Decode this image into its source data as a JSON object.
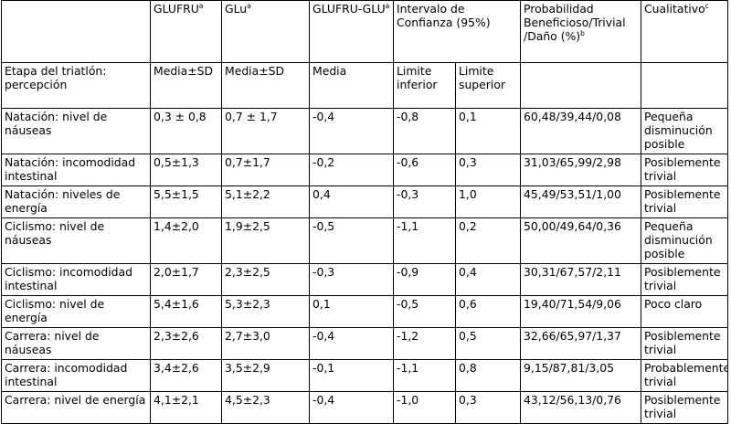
{
  "header_top": {
    "empty": "",
    "glufru": "GLUFRU",
    "glufru_sup": "a",
    "glu": "GLu",
    "glu_sup": "a",
    "glufru_glu": "GLUFRU-GLU",
    "glufru_glu_sup": "a",
    "confidence": "Intervalo de Confianza (95%)",
    "probability": "Probabilidad Beneficioso/Trivial /Daño (%)",
    "probability_sup": "b",
    "qualitative": "Cualitativo",
    "qualitative_sup": "c"
  },
  "header_sub": {
    "stage": "Etapa del triatlón: percepción",
    "glufru": "Media±SD",
    "glu": "Media±SD",
    "diff": "Media",
    "lower": "Limite inferior",
    "upper": "Limite superior",
    "probability": "",
    "qualitative": ""
  },
  "rows": [
    {
      "label": "Natación: nivel de náuseas",
      "glufru": "0,3 ± 0,8",
      "glu": "0,7 ± 1,7",
      "diff": "-0,4",
      "lower": "-0,8",
      "upper": "0,1",
      "prob": "60,48/39,44/0,08",
      "qual": "Pequeña disminución posible"
    },
    {
      "label": "Natación: incomodidad intestinal",
      "glufru": "0,5±1,3",
      "glu": "0,7±1,7",
      "diff": "-0,2",
      "lower": "-0,6",
      "upper": "0,3",
      "prob": "31,03/65,99/2,98",
      "qual": "Posiblemente trivial"
    },
    {
      "label": "Natación: niveles de energía",
      "glufru": "5,5±1,5",
      "glu": "5,1±2,2",
      "diff": "0,4",
      "lower": "-0,3",
      "upper": "1,0",
      "prob": "45,49/53,51/1,00",
      "qual": "Posiblemente trivial"
    },
    {
      "label": "Ciclismo: nivel de náuseas",
      "glufru": "1,4±2,0",
      "glu": "1,9±2,5",
      "diff": "-0,5",
      "lower": "-1,1",
      "upper": "0,2",
      "prob": "50,00/49,64/0,36",
      "qual": "Pequeña disminución posible"
    },
    {
      "label": "Ciclismo: incomodidad intestinal",
      "glufru": "2,0±1,7",
      "glu": "2,3±2,5",
      "diff": "-0,3",
      "lower": "-0,9",
      "upper": "0,4",
      "prob": "30,31/67,57/2,11",
      "qual": "Posiblemente trivial"
    },
    {
      "label": "Ciclismo: nivel de energía",
      "glufru": "5,4±1,6",
      "glu": "5,3±2,3",
      "diff": "0,1",
      "lower": "-0,5",
      "upper": "0,6",
      "prob": "19,40/71,54/9,06",
      "qual": "Poco claro"
    },
    {
      "label": "Carrera: nivel de náuseas",
      "glufru": "2,3±2,6",
      "glu": "2,7±3,0",
      "diff": "-0,4",
      "lower": "-1,2",
      "upper": "0,5",
      "prob": "32,66/65,97/1,37",
      "qual": "Posiblemente trivial"
    },
    {
      "label": "Carrera: incomodidad intestinal",
      "glufru": "3,4±2,6",
      "glu": "3,5±2,9",
      "diff": "-0,1",
      "lower": "-1,1",
      "upper": "0,8",
      "prob": "9,15/87,81/3,05",
      "qual": "Probablemente trivial"
    },
    {
      "label": "Carrera: nivel de energía",
      "glufru": "4,1±2,1",
      "glu": "4,5±2,3",
      "diff": "-0,4",
      "lower": "-1,0",
      "upper": "0,3",
      "prob": "43,12/56,13/0,76",
      "qual": "Posiblemente trivial"
    }
  ]
}
